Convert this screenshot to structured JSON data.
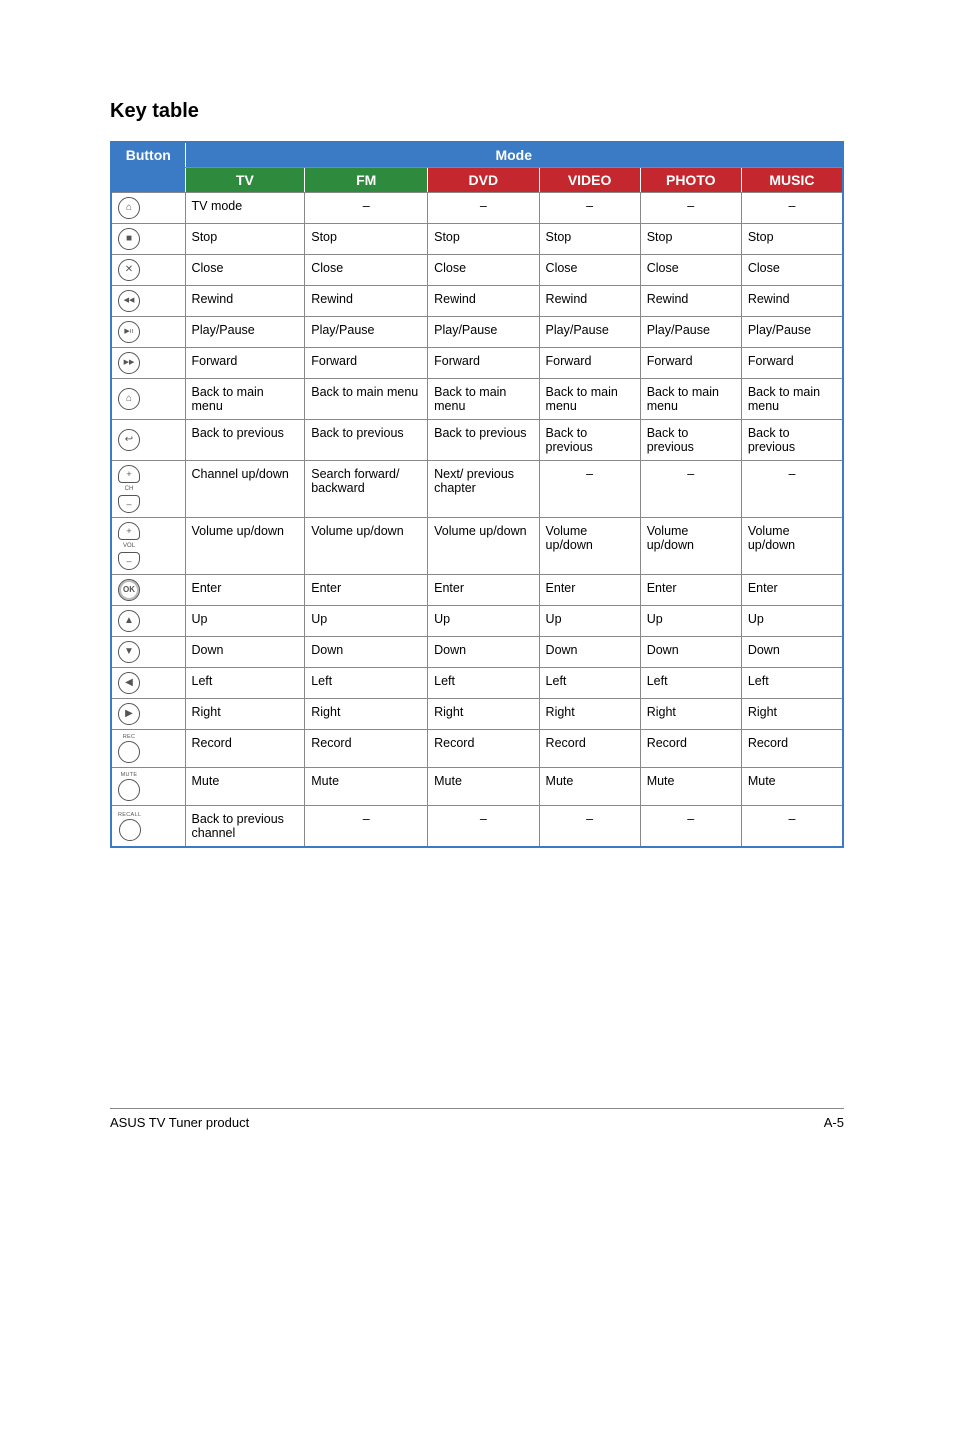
{
  "page": {
    "title": "Key table",
    "footer_left": "ASUS TV Tuner product",
    "footer_right": "A-5"
  },
  "header": {
    "button": "Button",
    "mode": "Mode",
    "cols": [
      "TV",
      "FM",
      "DVD",
      "VIDEO",
      "PHOTO",
      "MUSIC"
    ],
    "col_colors": [
      "#2e8b3d",
      "#2e8b3d",
      "#c4272d",
      "#c4272d",
      "#c4272d",
      "#c4272d"
    ]
  },
  "rows": [
    {
      "icon": "tv",
      "cells": [
        "TV mode",
        "–",
        "–",
        "–",
        "–",
        "–"
      ]
    },
    {
      "icon": "stop",
      "cells": [
        "Stop",
        "Stop",
        "Stop",
        "Stop",
        "Stop",
        "Stop"
      ]
    },
    {
      "icon": "close",
      "cells": [
        "Close",
        "Close",
        "Close",
        "Close",
        "Close",
        "Close"
      ]
    },
    {
      "icon": "rewind",
      "cells": [
        "Rewind",
        "Rewind",
        "Rewind",
        "Rewind",
        "Rewind",
        "Rewind"
      ]
    },
    {
      "icon": "playpause",
      "cells": [
        "Play/Pause",
        "Play/Pause",
        "Play/Pause",
        "Play/Pause",
        "Play/Pause",
        "Play/Pause"
      ]
    },
    {
      "icon": "forward",
      "cells": [
        "Forward",
        "Forward",
        "Forward",
        "Forward",
        "Forward",
        "Forward"
      ]
    },
    {
      "icon": "home",
      "cells": [
        "Back to main menu",
        "Back to main menu",
        "Back to main menu",
        "Back to main menu",
        "Back to main menu",
        "Back to main menu"
      ]
    },
    {
      "icon": "return",
      "cells": [
        "Back to previous",
        "Back to previous",
        "Back to previous",
        "Back to previous",
        "Back to previous",
        "Back to previous"
      ]
    },
    {
      "icon": "ch",
      "cells": [
        "Channel up/down",
        "Search forward/ backward",
        "Next/ previous chapter",
        "–",
        "–",
        "–"
      ]
    },
    {
      "icon": "vol",
      "cells": [
        "Volume up/down",
        "Volume up/down",
        "Volume up/down",
        "Volume up/down",
        "Volume up/down",
        "Volume up/down"
      ]
    },
    {
      "icon": "ok",
      "cells": [
        "Enter",
        "Enter",
        "Enter",
        "Enter",
        "Enter",
        "Enter"
      ]
    },
    {
      "icon": "up",
      "cells": [
        "Up",
        "Up",
        "Up",
        "Up",
        "Up",
        "Up"
      ]
    },
    {
      "icon": "down",
      "cells": [
        "Down",
        "Down",
        "Down",
        "Down",
        "Down",
        "Down"
      ]
    },
    {
      "icon": "left",
      "cells": [
        "Left",
        "Left",
        "Left",
        "Left",
        "Left",
        "Left"
      ]
    },
    {
      "icon": "right",
      "cells": [
        "Right",
        "Right",
        "Right",
        "Right",
        "Right",
        "Right"
      ]
    },
    {
      "icon": "rec",
      "label": "REC",
      "cells": [
        "Record",
        "Record",
        "Record",
        "Record",
        "Record",
        "Record"
      ]
    },
    {
      "icon": "mute",
      "label": "MUTE",
      "cells": [
        "Mute",
        "Mute",
        "Mute",
        "Mute",
        "Mute",
        "Mute"
      ]
    },
    {
      "icon": "recall",
      "label": "RECALL",
      "cells": [
        "Back to previous channel",
        "–",
        "–",
        "–",
        "–",
        "–"
      ]
    }
  ],
  "icon_glyphs": {
    "tv": "⌂",
    "stop": "■",
    "close": "✕",
    "rewind": "◀◀",
    "playpause": "▶ıı",
    "forward": "▶▶",
    "home": "⌂",
    "return": "↩",
    "ok": "OK",
    "up": "▲",
    "down": "▼",
    "left": "◀",
    "right": "▶",
    "plus": "+",
    "minus": "–"
  }
}
